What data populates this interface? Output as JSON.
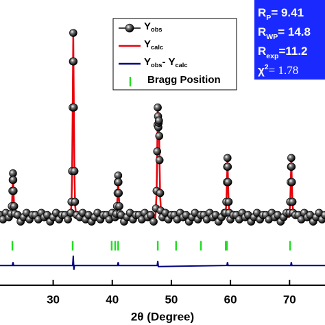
{
  "chart_data": {
    "type": "scatter",
    "xlabel": "2θ (Degree)",
    "xlim": [
      21,
      76
    ],
    "ylim": [
      -30,
      100
    ],
    "xticks": [
      30,
      40,
      50,
      60,
      70
    ],
    "legend": "top-center",
    "annotations": [
      "RP= 9.41",
      "RWP= 14.8",
      "Rexp=11.2",
      "χ2= 1.78"
    ],
    "series": [
      {
        "name": "Yobs",
        "color": "#000000",
        "kind": "points",
        "x": [
          21,
          21.5,
          22,
          22.5,
          22.9,
          23.0,
          23.1,
          23.15,
          23.2,
          23.25,
          23.3,
          23.4,
          23.5,
          24,
          24.5,
          25,
          25.5,
          26,
          26.5,
          27,
          27.5,
          28,
          28.5,
          29,
          29.5,
          30,
          30.5,
          31,
          31.5,
          32,
          32.5,
          33,
          33.1,
          33.2,
          33.3,
          33.35,
          33.4,
          33.45,
          33.5,
          33.6,
          33.7,
          34,
          34.5,
          35,
          35.5,
          36,
          36.5,
          37,
          37.5,
          38,
          38.5,
          39,
          39.5,
          40,
          40.5,
          40.7,
          40.8,
          40.9,
          40.95,
          41.0,
          41.05,
          41.1,
          41.2,
          41.3,
          41.5,
          42,
          42.5,
          43,
          43.5,
          44,
          44.5,
          45,
          45.5,
          46,
          46.5,
          47,
          47.4,
          47.5,
          47.6,
          47.65,
          47.7,
          47.75,
          47.8,
          47.85,
          47.9,
          47.95,
          48.0,
          48.1,
          48.2,
          48.5,
          49,
          49.5,
          50,
          50.5,
          51,
          51.5,
          52,
          52.5,
          53,
          53.5,
          54,
          54.5,
          55,
          55.5,
          56,
          56.5,
          57,
          57.5,
          58,
          58.5,
          59,
          59.2,
          59.3,
          59.4,
          59.45,
          59.5,
          59.55,
          59.6,
          59.7,
          59.8,
          60,
          60.5,
          61,
          61.5,
          62,
          62.5,
          63,
          63.5,
          64,
          64.5,
          65,
          65.5,
          66,
          66.5,
          67,
          67.5,
          68,
          68.5,
          69,
          69.5,
          70.0,
          70.1,
          70.2,
          70.25,
          70.3,
          70.35,
          70.4,
          70.5,
          70.6,
          71,
          71.5,
          72,
          72.5,
          73,
          73.5,
          74,
          74.5,
          75,
          75.5,
          76
        ],
        "values": [
          2,
          0,
          3,
          1,
          2.6,
          6,
          13,
          18,
          21,
          18,
          13,
          6,
          2.6,
          2,
          -1,
          1,
          3,
          0,
          2,
          2,
          0,
          3,
          1,
          2,
          -1,
          1,
          3,
          0,
          2,
          2,
          0,
          3,
          8,
          22,
          51,
          72,
          85,
          72,
          51,
          22,
          8,
          2,
          1,
          3,
          0,
          2,
          -1,
          1,
          3,
          0,
          2,
          2,
          0,
          3,
          1,
          2.5,
          6,
          12,
          17,
          20,
          17,
          12,
          6,
          2.5,
          2,
          -1,
          1,
          3,
          0,
          2,
          2,
          0,
          3,
          1,
          2,
          -1,
          5,
          13,
          31,
          43,
          51,
          47,
          42,
          44,
          45,
          38,
          27,
          12,
          4,
          1,
          3,
          0,
          2,
          2,
          0,
          3,
          1,
          2,
          -1,
          1,
          3,
          0,
          2,
          2,
          0,
          3,
          1,
          2,
          -1,
          1,
          3,
          3,
          8,
          17,
          24,
          28,
          24,
          17,
          8,
          3,
          0,
          2,
          2,
          0,
          3,
          1,
          2,
          -1,
          1,
          3,
          0,
          2,
          2,
          0,
          3,
          1,
          2,
          -1,
          1,
          3,
          3,
          8,
          17,
          24,
          28,
          24,
          17,
          8,
          3,
          2,
          2,
          0,
          3,
          1,
          2,
          -1,
          1,
          3,
          0,
          2
        ]
      },
      {
        "name": "Ycalc",
        "color": "#e8000b",
        "kind": "line",
        "x": [
          21,
          22.8,
          23.0,
          23.1,
          23.2,
          23.3,
          23.4,
          23.6,
          32.9,
          33.1,
          33.2,
          33.3,
          33.4,
          33.5,
          33.6,
          33.7,
          33.9,
          40.5,
          40.7,
          40.9,
          41.0,
          41.1,
          41.3,
          41.5,
          47.3,
          47.5,
          47.6,
          47.7,
          47.8,
          47.9,
          48.0,
          48.1,
          48.3,
          59.1,
          59.3,
          59.4,
          59.5,
          59.6,
          59.7,
          59.9,
          69.9,
          70.1,
          70.2,
          70.3,
          70.4,
          70.5,
          70.7,
          76
        ],
        "values": [
          1,
          1,
          5,
          12,
          20,
          12,
          5,
          1,
          1,
          7,
          21,
          50,
          84,
          50,
          21,
          7,
          1,
          1,
          2,
          11,
          19,
          11,
          2,
          1,
          1,
          12,
          30,
          50,
          41,
          44,
          26,
          11,
          1,
          1,
          7,
          16,
          27,
          16,
          7,
          1,
          1,
          7,
          16,
          27,
          16,
          7,
          1,
          1
        ]
      },
      {
        "name": "Yobs- Ycalc",
        "color": "#00007f",
        "kind": "line",
        "x": [
          21,
          23.1,
          23.2,
          23.3,
          33.3,
          33.4,
          33.5,
          33.6,
          40.9,
          41.0,
          41.1,
          47.6,
          47.7,
          47.8,
          59.4,
          59.5,
          59.6,
          70.2,
          70.3,
          70.4,
          76
        ],
        "values": [
          -21,
          -21,
          -19.5,
          -21,
          -21,
          -16.5,
          -23,
          -21,
          -21,
          -19.5,
          -21,
          -21,
          -19,
          -21.5,
          -21,
          -19.5,
          -21,
          -21,
          -19.5,
          -21,
          -21
        ]
      },
      {
        "name": "Bragg Position",
        "color": "#22dd22",
        "kind": "bragg",
        "x": [
          23.1,
          33.3,
          39.9,
          40.5,
          41.0,
          47.7,
          50.8,
          55.0,
          59.2,
          59.4,
          70.1
        ],
        "values": [
          -12,
          -12,
          -12,
          -12,
          -12,
          -12,
          -12,
          -12,
          -12,
          -12,
          -12
        ]
      }
    ]
  }
}
